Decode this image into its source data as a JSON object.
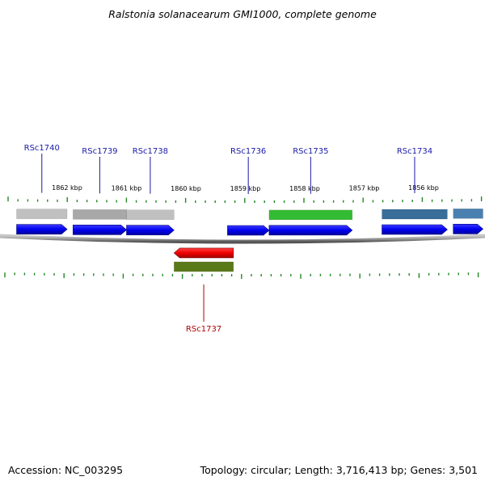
{
  "title": "Ralstonia solanacearum GMI1000, complete genome",
  "footer": {
    "accession": "Accession: NC_003295",
    "topology": "Topology: circular; Length: 3,716,413 bp; Genes: 3,501"
  },
  "scale": {
    "ticks": [
      {
        "label": "1862 kbp",
        "kb": 1862
      },
      {
        "label": "1861 kbp",
        "kb": 1861
      },
      {
        "label": "1860 kbp",
        "kb": 1860
      },
      {
        "label": "1859 kbp",
        "kb": 1859
      },
      {
        "label": "1858 kbp",
        "kb": 1858
      },
      {
        "label": "1857 kbp",
        "kb": 1857
      },
      {
        "label": "1856 kbp",
        "kb": 1856
      }
    ]
  },
  "genes": [
    {
      "name": "RSc1740",
      "strand": "+",
      "start_kb": 1862.85,
      "end_kb": 1862.0,
      "cog_color": "#c0c0c0"
    },
    {
      "name": "RSc1739",
      "strand": "+",
      "start_kb": 1861.9,
      "end_kb": 1861.0,
      "cog_color": "#a8a8a8"
    },
    {
      "name": "RSc1738",
      "strand": "+",
      "start_kb": 1861.0,
      "end_kb": 1860.2,
      "cog_color": "#c0c0c0"
    },
    {
      "name": "RSc1737",
      "strand": "-",
      "start_kb": 1860.2,
      "end_kb": 1859.2,
      "cog_color": "#5a7a1a",
      "color": "#b00000"
    },
    {
      "name": "RSc1736",
      "strand": "+",
      "start_kb": 1859.3,
      "end_kb": 1858.6,
      "cog_color": null
    },
    {
      "name": "RSc1735",
      "strand": "+",
      "start_kb": 1858.6,
      "end_kb": 1857.2,
      "cog_color": "#33bb33"
    },
    {
      "name": "RSc1734",
      "strand": "+",
      "start_kb": 1856.7,
      "end_kb": 1855.6,
      "cog_color": "#3a6e9a"
    },
    {
      "name": "",
      "strand": "+",
      "start_kb": 1855.5,
      "end_kb": 1855.0,
      "cog_color": "#4a80b0"
    }
  ],
  "colors": {
    "forward_gene": "#0000ee",
    "reverse_gene": "#ee0000",
    "tick": "#228822",
    "backbone": "#888888",
    "gene_label": "#1a1aa8",
    "reverse_label": "#b00000"
  }
}
